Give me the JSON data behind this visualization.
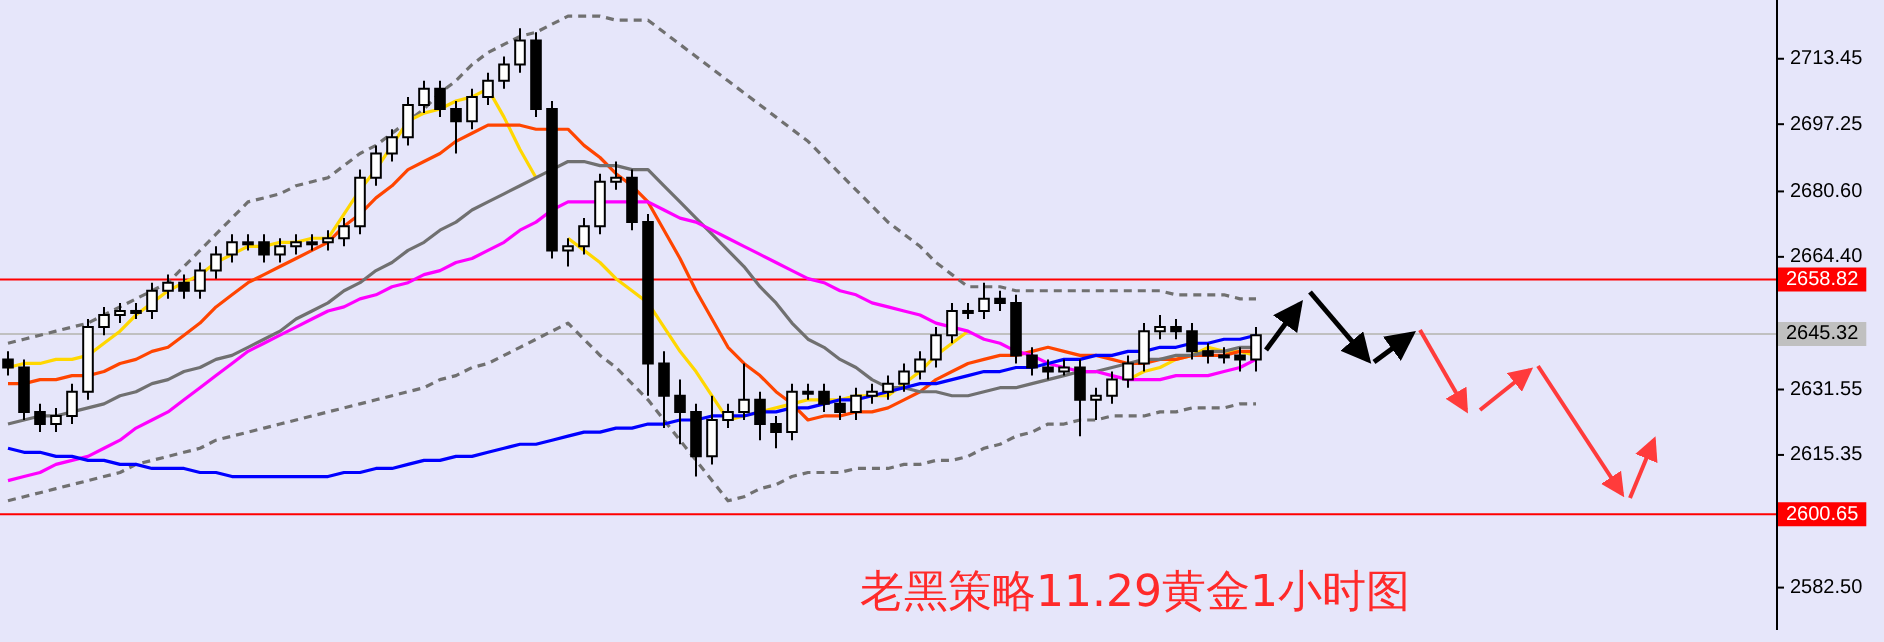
{
  "chart_data": {
    "type": "candlestick",
    "title": "老黑策略11.29黄金1小时图",
    "categories": [
      null,
      null,
      null,
      null,
      null,
      null,
      null,
      null,
      null,
      null,
      null,
      null,
      null,
      null,
      null,
      null,
      null,
      null,
      null,
      null,
      null,
      null,
      null,
      null,
      null,
      null,
      null,
      null,
      null,
      null,
      null,
      null,
      null,
      null,
      null,
      null,
      null,
      null,
      null,
      null,
      null,
      null,
      null,
      null,
      null,
      null,
      null,
      null,
      null,
      null,
      null,
      null,
      null,
      null,
      null,
      null,
      null,
      null,
      null,
      null,
      null,
      null,
      null,
      null,
      null,
      null,
      null,
      null,
      null,
      null,
      null,
      null,
      null,
      null,
      null,
      null,
      null,
      null,
      null
    ],
    "ohlc": [
      [
        2639,
        2641,
        2635,
        2637
      ],
      [
        2637,
        2639,
        2624,
        2626
      ],
      [
        2626,
        2628,
        2621,
        2623
      ],
      [
        2623,
        2627,
        2621,
        2625
      ],
      [
        2625,
        2633,
        2623,
        2631
      ],
      [
        2631,
        2649,
        2629,
        2647
      ],
      [
        2647,
        2652,
        2645,
        2650
      ],
      [
        2650,
        2653,
        2648,
        2651
      ],
      [
        2651,
        2653,
        2649,
        2651
      ],
      [
        2651,
        2658,
        2649,
        2656
      ],
      [
        2656,
        2660,
        2654,
        2658
      ],
      [
        2658,
        2660,
        2654,
        2656
      ],
      [
        2656,
        2663,
        2654,
        2661
      ],
      [
        2661,
        2667,
        2659,
        2665
      ],
      [
        2665,
        2670,
        2663,
        2668
      ],
      [
        2668,
        2670,
        2666,
        2668
      ],
      [
        2668,
        2670,
        2663,
        2665
      ],
      [
        2665,
        2669,
        2663,
        2667
      ],
      [
        2667,
        2670,
        2665,
        2668
      ],
      [
        2668,
        2670,
        2666,
        2668
      ],
      [
        2668,
        2671,
        2666,
        2669
      ],
      [
        2669,
        2674,
        2667,
        2672
      ],
      [
        2672,
        2686,
        2670,
        2684
      ],
      [
        2684,
        2692,
        2682,
        2690
      ],
      [
        2690,
        2696,
        2688,
        2694
      ],
      [
        2694,
        2704,
        2692,
        2702
      ],
      [
        2702,
        2708,
        2700,
        2706
      ],
      [
        2706,
        2708,
        2699,
        2701
      ],
      [
        2701,
        2703,
        2690,
        2698
      ],
      [
        2698,
        2706,
        2696,
        2704
      ],
      [
        2704,
        2710,
        2702,
        2708
      ],
      [
        2708,
        2714,
        2706,
        2712
      ],
      [
        2712,
        2721,
        2710,
        2718
      ],
      [
        2718,
        2720,
        2699,
        2701
      ],
      [
        2701,
        2703,
        2664,
        2666
      ],
      [
        2666,
        2669,
        2662,
        2667
      ],
      [
        2667,
        2674,
        2665,
        2672
      ],
      [
        2672,
        2685,
        2670,
        2683
      ],
      [
        2683,
        2688,
        2681,
        2684
      ],
      [
        2684,
        2686,
        2671,
        2673
      ],
      [
        2673,
        2675,
        2630,
        2638
      ],
      [
        2638,
        2641,
        2622,
        2630
      ],
      [
        2630,
        2634,
        2618,
        2626
      ],
      [
        2626,
        2628,
        2610,
        2615
      ],
      [
        2615,
        2630,
        2613,
        2624
      ],
      [
        2624,
        2628,
        2622,
        2626
      ],
      [
        2626,
        2638,
        2624,
        2629
      ],
      [
        2629,
        2631,
        2619,
        2623
      ],
      [
        2623,
        2625,
        2617,
        2621
      ],
      [
        2621,
        2633,
        2619,
        2631
      ],
      [
        2631,
        2633,
        2629,
        2631
      ],
      [
        2631,
        2633,
        2626,
        2628
      ],
      [
        2628,
        2630,
        2624,
        2626
      ],
      [
        2626,
        2632,
        2624,
        2630
      ],
      [
        2630,
        2633,
        2628,
        2631
      ],
      [
        2631,
        2635,
        2629,
        2633
      ],
      [
        2633,
        2638,
        2631,
        2636
      ],
      [
        2636,
        2641,
        2634,
        2639
      ],
      [
        2639,
        2647,
        2637,
        2645
      ],
      [
        2645,
        2653,
        2643,
        2651
      ],
      [
        2651,
        2653,
        2649,
        2651
      ],
      [
        2651,
        2658,
        2649,
        2654
      ],
      [
        2654,
        2656,
        2651,
        2653
      ],
      [
        2653,
        2655,
        2638,
        2640
      ],
      [
        2640,
        2642,
        2635,
        2637
      ],
      [
        2637,
        2639,
        2634,
        2636
      ],
      [
        2636,
        2639,
        2635,
        2637
      ],
      [
        2637,
        2639,
        2620,
        2629
      ],
      [
        2629,
        2632,
        2624,
        2630
      ],
      [
        2630,
        2636,
        2628,
        2634
      ],
      [
        2634,
        2640,
        2632,
        2638
      ],
      [
        2638,
        2648,
        2636,
        2646
      ],
      [
        2646,
        2650,
        2644,
        2647
      ],
      [
        2647,
        2649,
        2644,
        2646
      ],
      [
        2646,
        2648,
        2639,
        2641
      ],
      [
        2641,
        2643,
        2638,
        2640
      ],
      [
        2640,
        2642,
        2638,
        2640
      ],
      [
        2640,
        2642,
        2636,
        2639
      ],
      [
        2639,
        2647,
        2636,
        2645
      ]
    ],
    "series": [
      {
        "type": "line",
        "color": "#0000ff",
        "values": [
          2617,
          2616,
          2616,
          2615,
          2615,
          2614,
          2614,
          2613,
          2613,
          2612,
          2612,
          2612,
          2611,
          2611,
          2610,
          2610,
          2610,
          2610,
          2610,
          2610,
          2610,
          2611,
          2611,
          2612,
          2612,
          2613,
          2614,
          2614,
          2615,
          2615,
          2616,
          2617,
          2618,
          2618,
          2619,
          2620,
          2621,
          2621,
          2622,
          2622,
          2623,
          2623,
          2624,
          2624,
          2625,
          2625,
          2625,
          2626,
          2626,
          2627,
          2627,
          2628,
          2629,
          2629,
          2630,
          2631,
          2632,
          2633,
          2633,
          2634,
          2635,
          2636,
          2636,
          2637,
          2637,
          2638,
          2639,
          2639,
          2640,
          2640,
          2641,
          2641,
          2642,
          2642,
          2643,
          2643,
          2644,
          2644,
          2645
        ]
      },
      {
        "type": "line",
        "color": "#ff00ff",
        "values": [
          2609,
          2610,
          2611,
          2613,
          2614,
          2615,
          2617,
          2619,
          2622,
          2624,
          2626,
          2629,
          2632,
          2635,
          2638,
          2641,
          2643,
          2645,
          2647,
          2649,
          2651,
          2652,
          2654,
          2655,
          2657,
          2658,
          2660,
          2661,
          2663,
          2664,
          2666,
          2668,
          2671,
          2673,
          2676,
          2678,
          2678,
          2678,
          2678,
          2678,
          2678,
          2676,
          2674,
          2673,
          2671,
          2669,
          2667,
          2665,
          2663,
          2661,
          2659,
          2658,
          2656,
          2655,
          2653,
          2652,
          2651,
          2650,
          2648,
          2647,
          2646,
          2644,
          2643,
          2641,
          2640,
          2638,
          2637,
          2636,
          2636,
          2635,
          2634,
          2634,
          2634,
          2635,
          2635,
          2635,
          2636,
          2637,
          2639
        ]
      },
      {
        "type": "line",
        "color": "#707070",
        "values": [
          2623,
          2624,
          2625,
          2625,
          2626,
          2627,
          2628,
          2630,
          2631,
          2633,
          2634,
          2636,
          2637,
          2639,
          2640,
          2642,
          2644,
          2646,
          2649,
          2651,
          2653,
          2656,
          2658,
          2661,
          2663,
          2666,
          2668,
          2671,
          2673,
          2676,
          2678,
          2680,
          2682,
          2684,
          2686,
          2688,
          2688,
          2687,
          2687,
          2686,
          2686,
          2682,
          2678,
          2674,
          2670,
          2666,
          2662,
          2657,
          2653,
          2648,
          2644,
          2642,
          2639,
          2637,
          2634,
          2632,
          2632,
          2631,
          2631,
          2630,
          2630,
          2631,
          2632,
          2632,
          2633,
          2634,
          2635,
          2636,
          2636,
          2637,
          2638,
          2639,
          2639,
          2640,
          2640,
          2641,
          2641,
          2642,
          2642
        ]
      },
      {
        "type": "line",
        "color": "#ff4500",
        "values": [
          2633,
          2633,
          2634,
          2634,
          2635,
          2635,
          2636,
          2638,
          2639,
          2641,
          2642,
          2645,
          2648,
          2652,
          2655,
          2658,
          2660,
          2662,
          2664,
          2666,
          2668,
          2672,
          2675,
          2679,
          2682,
          2686,
          2688,
          2690,
          2693,
          2695,
          2697,
          2697,
          2697,
          2696,
          2696,
          2696,
          2692,
          2689,
          2685,
          2682,
          2678,
          2671,
          2664,
          2656,
          2649,
          2642,
          2638,
          2635,
          2631,
          2628,
          2624,
          2625,
          2625,
          2626,
          2626,
          2627,
          2629,
          2631,
          2634,
          2636,
          2638,
          2639,
          2640,
          2640,
          2641,
          2642,
          2641,
          2640,
          2640,
          2639,
          2638,
          2638,
          2639,
          2639,
          2640,
          2640,
          2640,
          2641,
          2641
        ]
      },
      {
        "type": "line",
        "color": "#ffd700",
        "values": [
          2637,
          2638,
          2638,
          2639,
          2639,
          2640,
          2643,
          2646,
          2650,
          2653,
          2656,
          2658,
          2660,
          2663,
          2665,
          2667,
          2667,
          2668,
          2668,
          2669,
          2669,
          2675,
          2681,
          2686,
          2692,
          2698,
          2700,
          2701,
          2703,
          2704,
          2706,
          2699,
          2691,
          2684,
          null,
          2669,
          2666,
          2663,
          2659,
          2656,
          2653,
          2647,
          2641,
          2636,
          2630,
          2624,
          2625,
          2626,
          2627,
          2628,
          2629,
          2629,
          2629,
          2630,
          2630,
          2630,
          2633,
          2636,
          2640,
          2643,
          2646,
          null,
          null,
          null,
          null,
          null,
          null,
          null,
          null,
          null,
          2634,
          2636,
          2637,
          2639,
          2640,
          2642,
          2641,
          2641,
          2640
        ]
      },
      {
        "type": "line",
        "color": "#707070",
        "line_style": "dashed",
        "values": [
          2643,
          2644,
          2645,
          2646,
          2647,
          2648,
          2650,
          2652,
          2654,
          2656,
          2658,
          2662,
          2666,
          2670,
          2674,
          2678,
          2679,
          2680,
          2682,
          2683,
          2684,
          2687,
          2690,
          2692,
          2695,
          2698,
          2701,
          2705,
          2708,
          2712,
          2715,
          2717,
          2719,
          2720,
          2722,
          2724,
          2724,
          2724,
          2723,
          2723,
          2723,
          2720,
          2717,
          2714,
          2711,
          2708,
          2705,
          2702,
          2699,
          2696,
          2693,
          2689,
          2685,
          2681,
          2677,
          2673,
          2670,
          2667,
          2663,
          2660,
          2657,
          2657,
          2657,
          2656,
          2656,
          2656,
          2656,
          2656,
          2656,
          2656,
          2656,
          2656,
          2656,
          2655,
          2655,
          2655,
          2655,
          2654,
          2654
        ]
      },
      {
        "type": "line",
        "color": "#707070",
        "line_style": "dashed",
        "values": [
          2604,
          2605,
          2606,
          2607,
          2608,
          2609,
          2610,
          2611,
          2613,
          2614,
          2615,
          2616,
          2617,
          2619,
          2620,
          2621,
          2622,
          2623,
          2624,
          2625,
          2626,
          2627,
          2628,
          2629,
          2630,
          2631,
          2632,
          2634,
          2635,
          2637,
          2638,
          2640,
          2642,
          2644,
          2646,
          2648,
          2644,
          2640,
          2637,
          2633,
          2629,
          2624,
          2619,
          2614,
          2609,
          2604,
          2605,
          2607,
          2608,
          2610,
          2611,
          2611,
          2611,
          2612,
          2612,
          2612,
          2613,
          2613,
          2614,
          2614,
          2615,
          2617,
          2618,
          2620,
          2621,
          2623,
          2623,
          2624,
          2624,
          2625,
          2625,
          2625,
          2626,
          2626,
          2627,
          2627,
          2627,
          2628,
          2628
        ]
      }
    ],
    "ylim": [
      2572,
      2728
    ],
    "yticks": [
      {
        "value": 2582.5,
        "label": "2582.50"
      },
      2615.35,
      2631.55,
      {
        "value": 2664.4,
        "label": "2664.40"
      },
      {
        "value": 2680.6,
        "label": "2680.60"
      },
      2697.25,
      2713.45
    ],
    "ref_lines": [
      {
        "axis": "y",
        "value": 2658.82,
        "label": "2658.82",
        "color": "#ff0000"
      },
      {
        "axis": "y",
        "value": 2645.32,
        "label": "2645.32",
        "color": "#c0c0c0"
      },
      {
        "axis": "y",
        "value": 2600.65,
        "label": "2600.65",
        "color": "#ff0000"
      }
    ],
    "tick_labels": "y",
    "grid": false,
    "legend": false,
    "marker": "none"
  }
}
